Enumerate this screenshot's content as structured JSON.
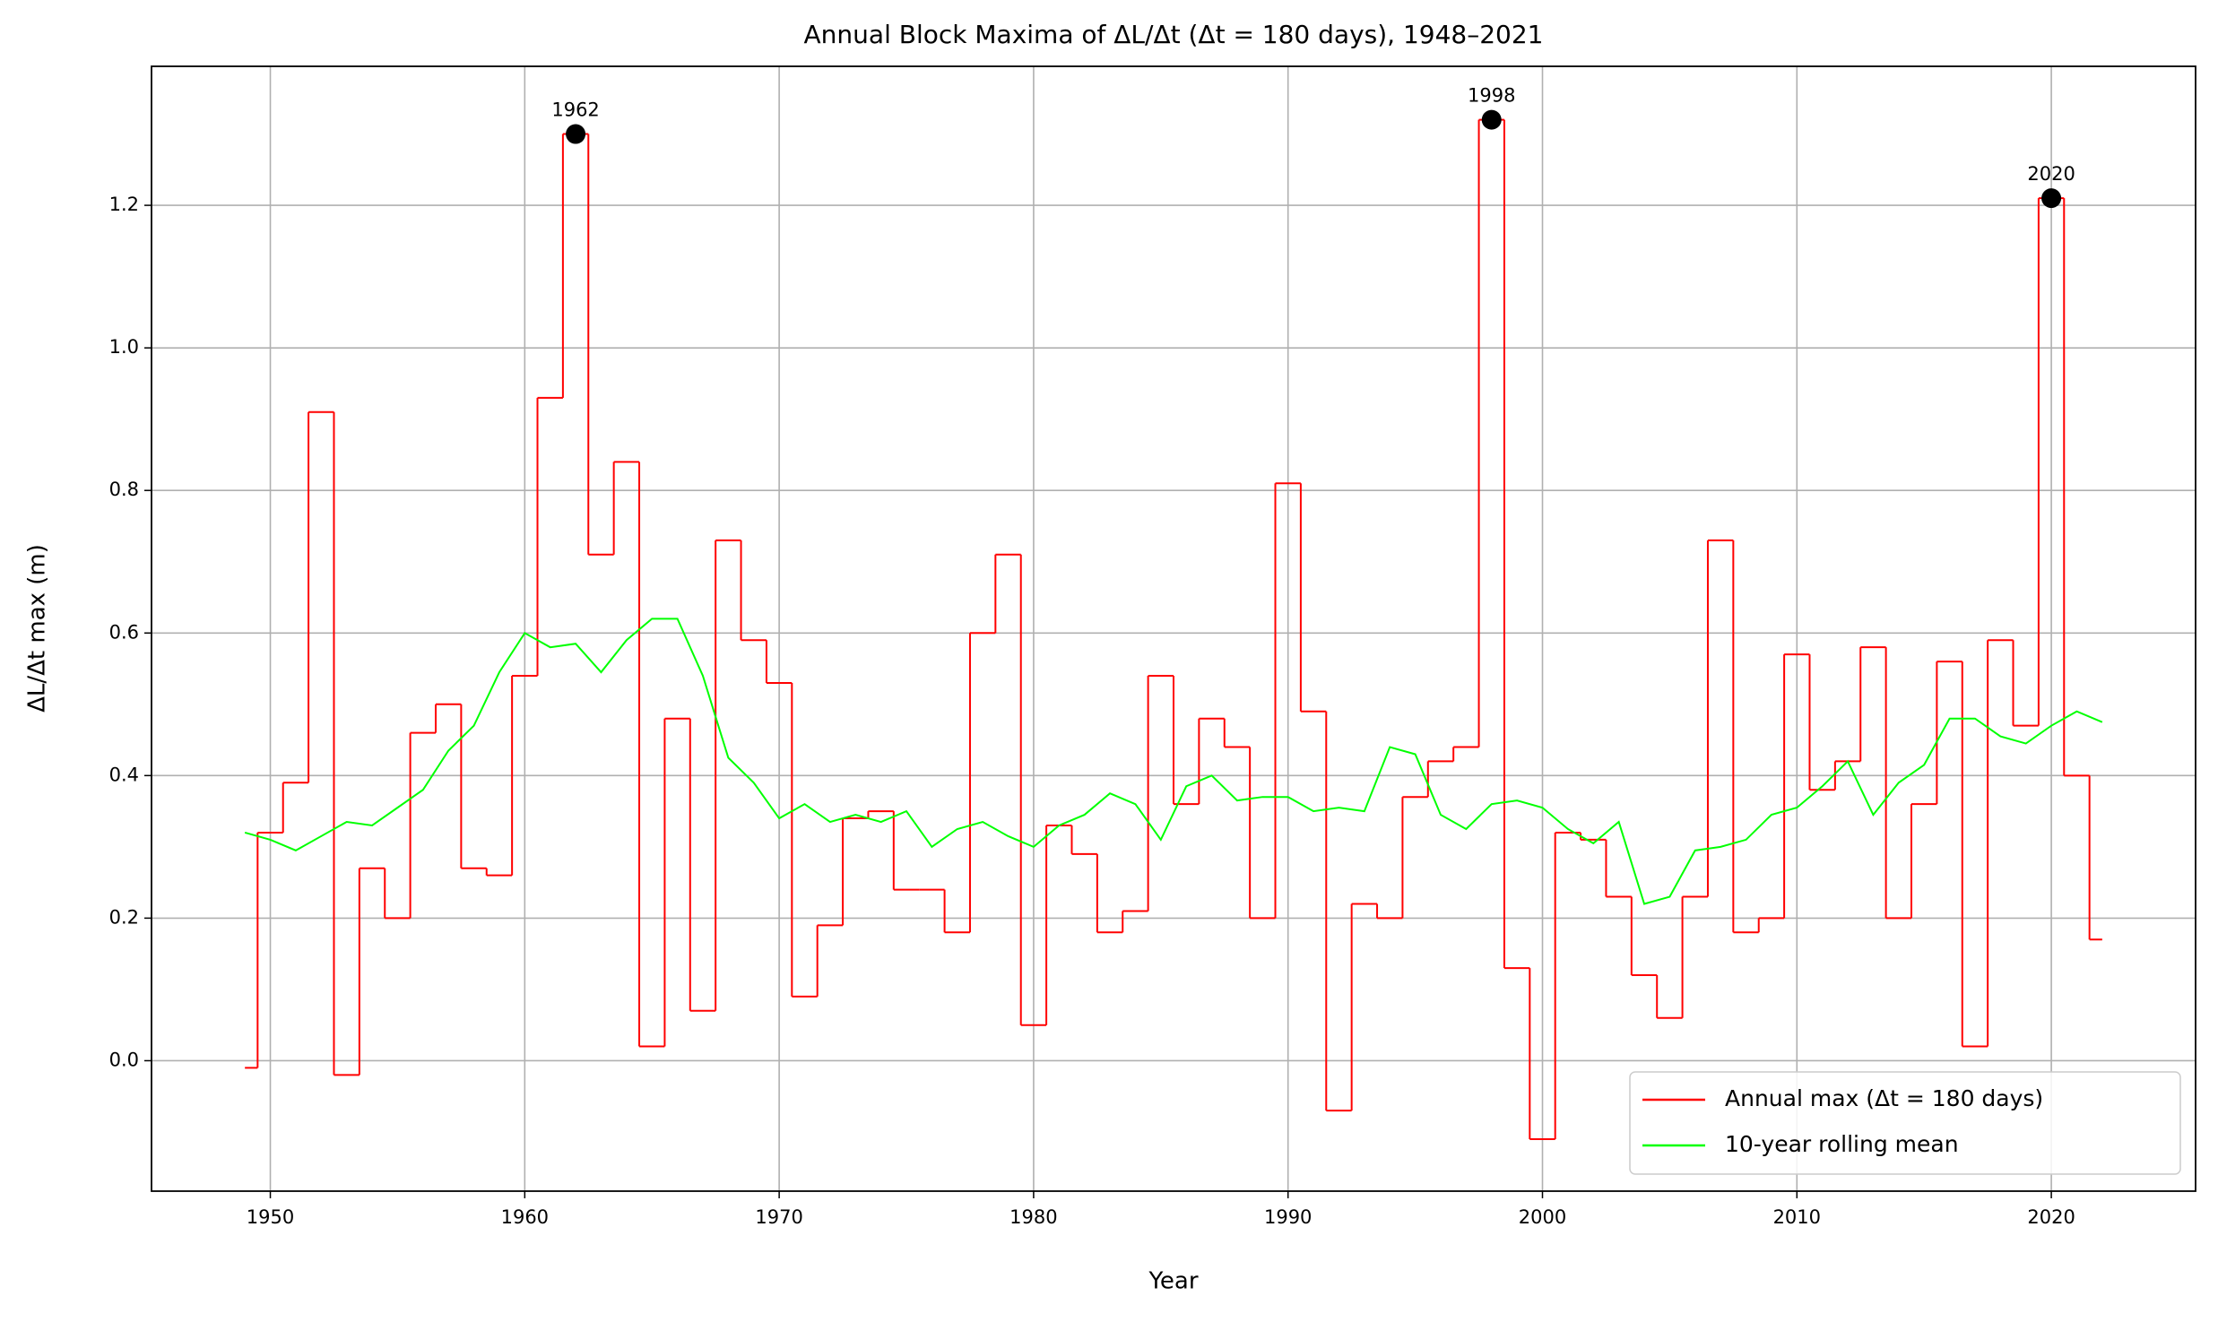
{
  "chart_data": {
    "type": "line",
    "title": "Annual Block Maxima of ΔL/Δt (Δt = 180 days), 1948–2021",
    "x_label": "Year",
    "y_label": "ΔL/Δt max (m)",
    "x": [
      1949,
      1950,
      1951,
      1952,
      1953,
      1954,
      1955,
      1956,
      1957,
      1958,
      1959,
      1960,
      1961,
      1962,
      1963,
      1964,
      1965,
      1966,
      1967,
      1968,
      1969,
      1970,
      1971,
      1972,
      1973,
      1974,
      1975,
      1976,
      1977,
      1978,
      1979,
      1980,
      1981,
      1982,
      1983,
      1984,
      1985,
      1986,
      1987,
      1988,
      1989,
      1990,
      1991,
      1992,
      1993,
      1994,
      1995,
      1996,
      1997,
      1998,
      1999,
      2000,
      2001,
      2002,
      2003,
      2004,
      2005,
      2006,
      2007,
      2008,
      2009,
      2010,
      2011,
      2012,
      2013,
      2014,
      2015,
      2016,
      2017,
      2018,
      2019,
      2020,
      2021,
      2022
    ],
    "series": [
      {
        "name": "Annual max (Δt = 180 days)",
        "color": "#ff0000",
        "drawstyle": "steps-mid",
        "values": [
          -0.01,
          0.32,
          0.39,
          0.91,
          -0.02,
          0.27,
          0.2,
          0.46,
          0.5,
          0.27,
          0.26,
          0.54,
          0.93,
          1.3,
          0.71,
          0.84,
          0.02,
          0.48,
          0.07,
          0.73,
          0.59,
          0.53,
          0.09,
          0.19,
          0.34,
          0.35,
          0.24,
          0.24,
          0.18,
          0.6,
          0.71,
          0.05,
          0.33,
          0.29,
          0.18,
          0.21,
          0.54,
          0.36,
          0.48,
          0.44,
          0.2,
          0.81,
          0.49,
          -0.07,
          0.22,
          0.2,
          0.37,
          0.42,
          0.44,
          1.32,
          0.13,
          -0.11,
          0.32,
          0.31,
          0.23,
          0.12,
          0.06,
          0.23,
          0.73,
          0.18,
          0.2,
          0.57,
          0.38,
          0.42,
          0.58,
          0.2,
          0.36,
          0.56,
          0.02,
          0.59,
          0.47,
          1.21,
          0.4,
          0.17
        ]
      },
      {
        "name": "10-year rolling mean",
        "color": "#00ff00",
        "drawstyle": "default",
        "values": [
          0.32,
          0.31,
          0.295,
          0.315,
          0.335,
          0.33,
          0.355,
          0.38,
          0.435,
          0.47,
          0.545,
          0.6,
          0.58,
          0.585,
          0.545,
          0.59,
          0.62,
          0.62,
          0.54,
          0.425,
          0.39,
          0.34,
          0.36,
          0.335,
          0.345,
          0.335,
          0.35,
          0.3,
          0.325,
          0.335,
          0.315,
          0.3,
          0.33,
          0.345,
          0.375,
          0.36,
          0.31,
          0.385,
          0.4,
          0.365,
          0.37,
          0.37,
          0.35,
          0.355,
          0.35,
          0.44,
          0.43,
          0.345,
          0.325,
          0.36,
          0.365,
          0.355,
          0.325,
          0.305,
          0.335,
          0.22,
          0.23,
          0.295,
          0.3,
          0.31,
          0.345,
          0.355,
          0.385,
          0.42,
          0.345,
          0.39,
          0.415,
          0.48,
          0.48,
          0.455,
          0.445,
          0.47,
          0.49,
          0.475
        ]
      }
    ],
    "annotations": [
      {
        "text": "1962",
        "x": 1962,
        "y": 1.3
      },
      {
        "text": "1998",
        "x": 1998,
        "y": 1.32
      },
      {
        "text": "2020",
        "x": 2020,
        "y": 1.21
      }
    ],
    "marker_color": "#000000",
    "xlim": [
      1945.33,
      2025.67
    ],
    "ylim": [
      -0.183,
      1.395
    ],
    "xticks": [
      1950,
      1960,
      1970,
      1980,
      1990,
      2000,
      2010,
      2020
    ],
    "yticks": [
      {
        "value": 0,
        "label": "0.0"
      },
      {
        "value": 0.2,
        "label": "0.2"
      },
      {
        "value": 0.4,
        "label": "0.4"
      },
      {
        "value": 0.6,
        "label": "0.6"
      },
      {
        "value": 0.8,
        "label": "0.8"
      },
      {
        "value": 1.0,
        "label": "1.0"
      },
      {
        "value": 1.2,
        "label": "1.2"
      }
    ],
    "grid": true,
    "legend": "lower right"
  }
}
